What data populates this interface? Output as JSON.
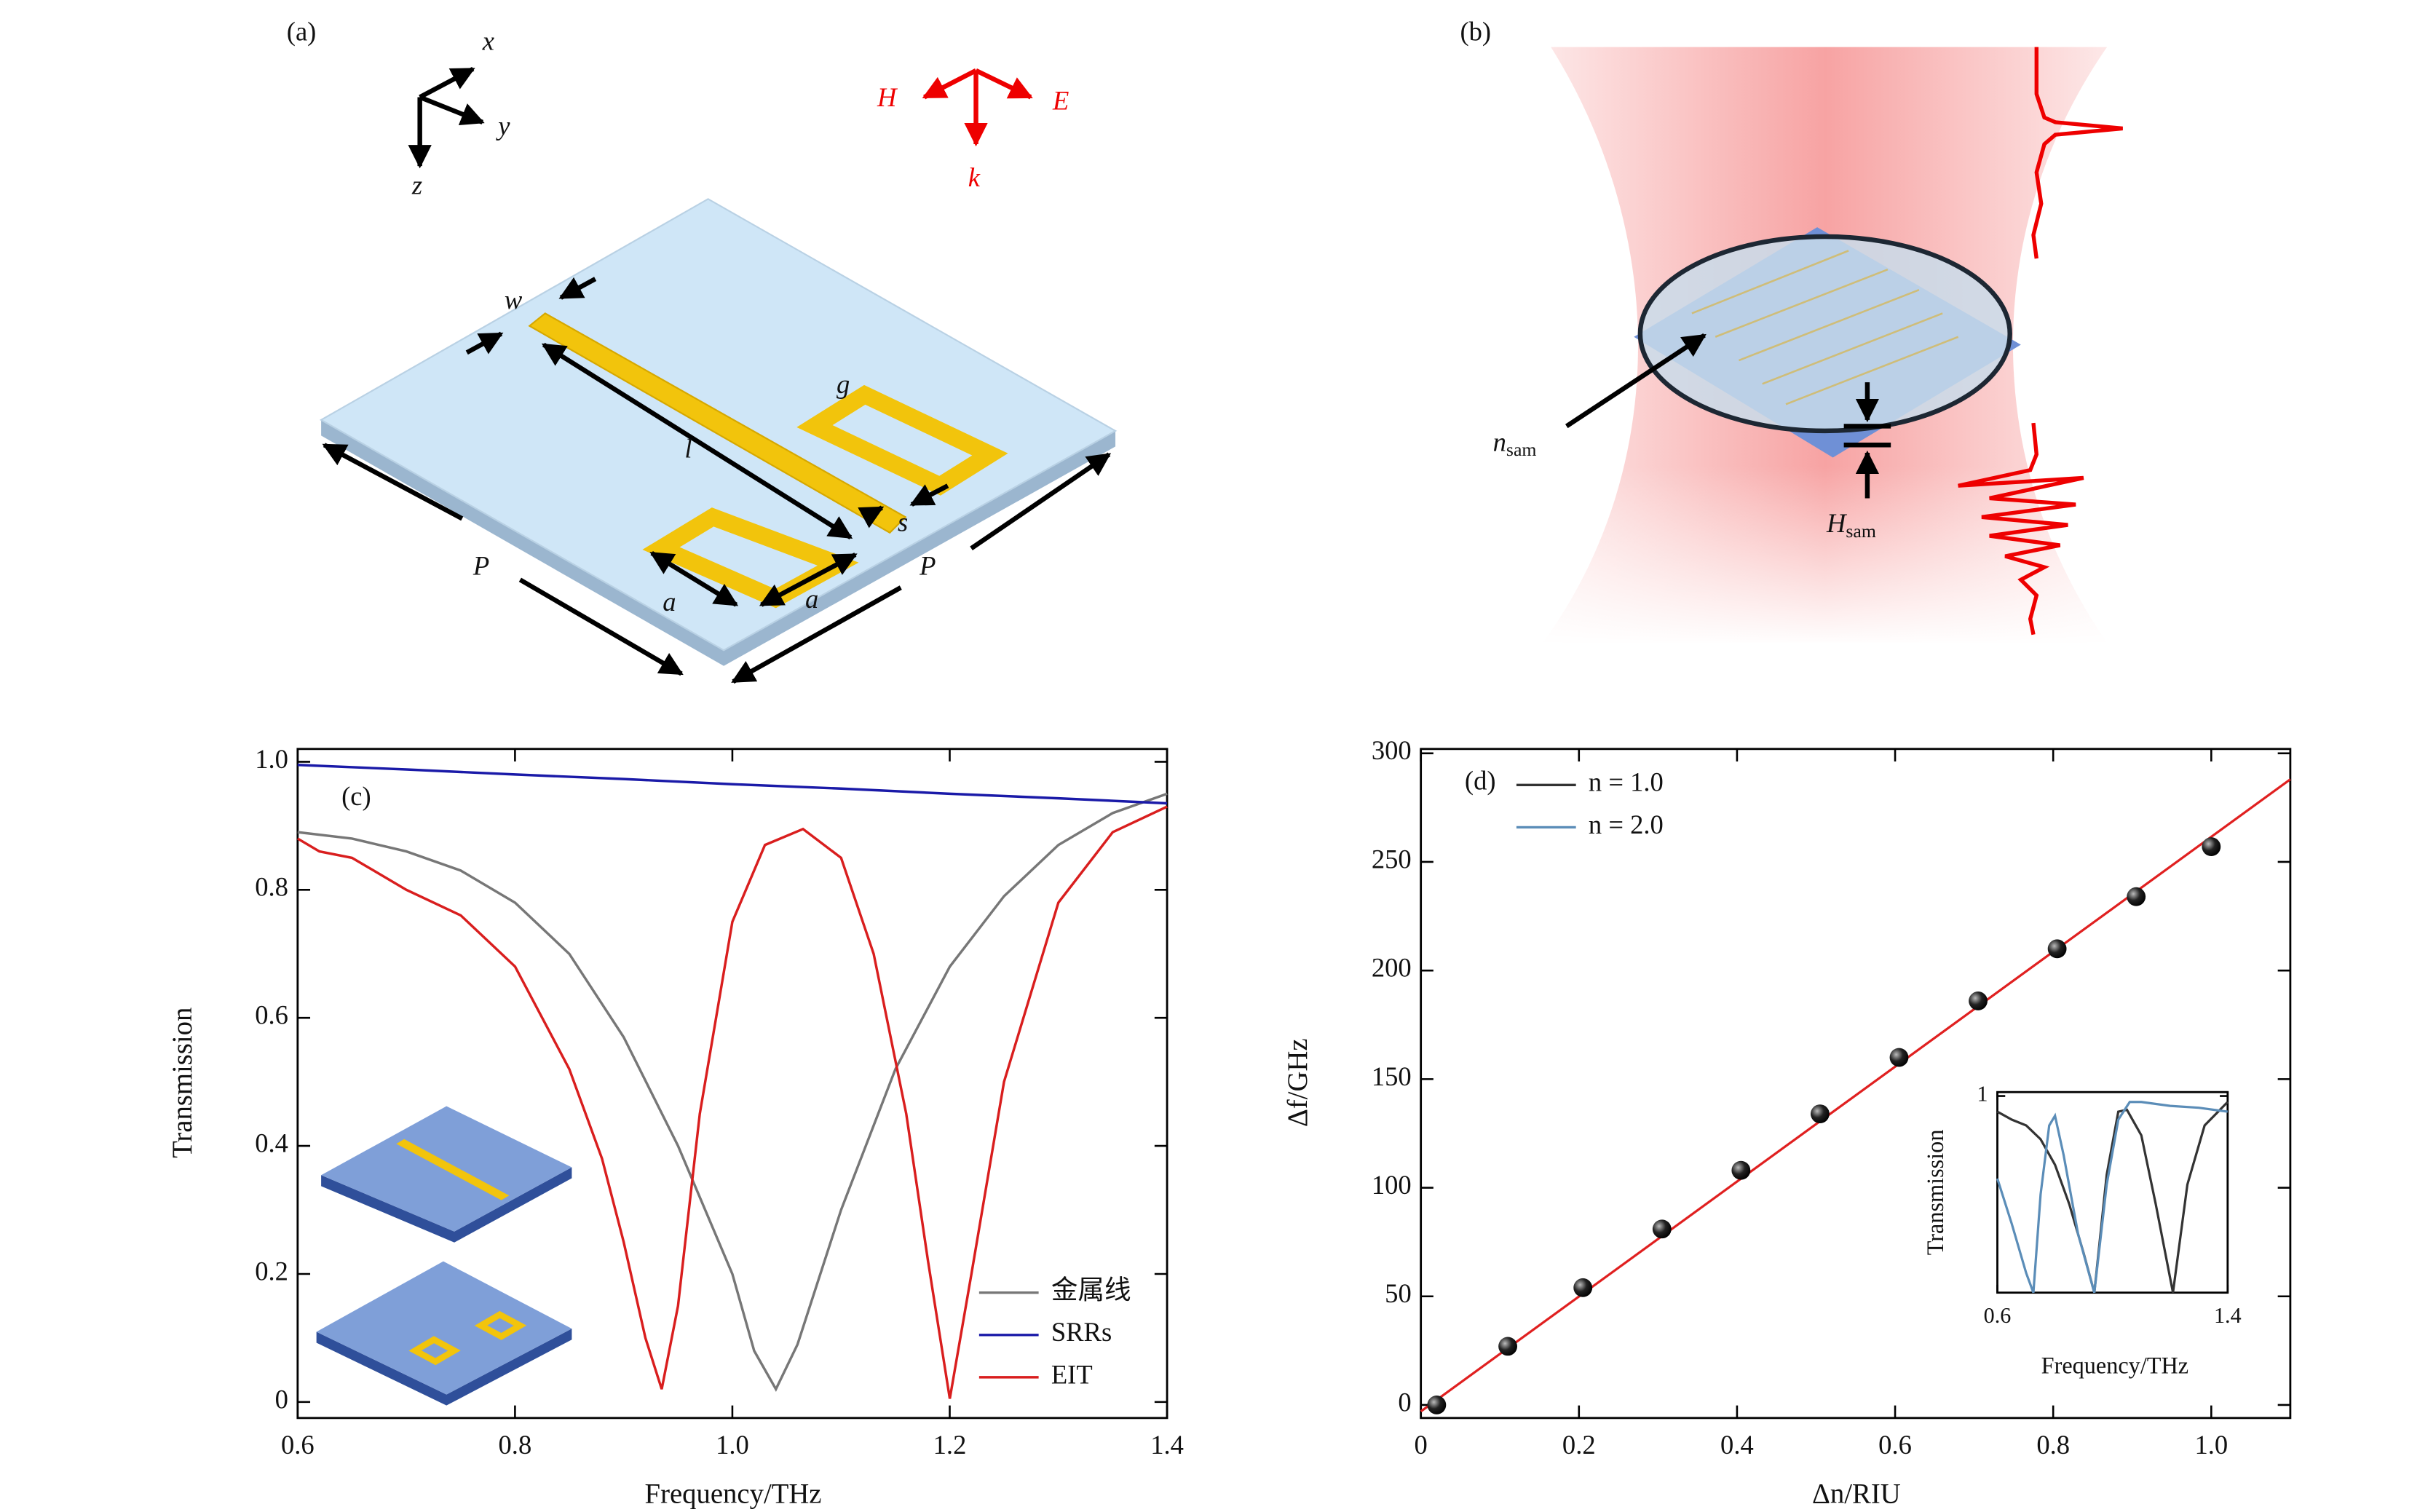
{
  "chart_data": [
    {
      "type": "line",
      "annotation": "(c)",
      "xlabel": "Frequency/THz",
      "ylabel": "Transmission",
      "xlim": [
        0.6,
        1.4
      ],
      "ylim": [
        -0.025,
        1.02
      ],
      "xticks": [
        0.6,
        0.8,
        {
          "value": 1,
          "label": "1.0"
        },
        1.2,
        1.4
      ],
      "yticks": [
        0,
        0.2,
        0.4,
        0.6,
        0.8,
        {
          "value": 1,
          "label": "1.0"
        }
      ],
      "legend": "lower right",
      "series": [
        {
          "name": "金属线",
          "color": "#777777",
          "x": [
            0.6,
            0.65,
            0.7,
            0.75,
            0.8,
            0.85,
            0.9,
            0.95,
            1.0,
            1.02,
            1.04,
            1.06,
            1.1,
            1.15,
            1.2,
            1.25,
            1.3,
            1.35,
            1.4
          ],
          "values": [
            0.89,
            0.88,
            0.86,
            0.83,
            0.78,
            0.7,
            0.57,
            0.4,
            0.2,
            0.08,
            0.02,
            0.09,
            0.3,
            0.52,
            0.68,
            0.79,
            0.87,
            0.92,
            0.95
          ]
        },
        {
          "name": "SRRs",
          "color": "#1a1aa8",
          "x": [
            0.6,
            0.7,
            0.8,
            0.9,
            1.0,
            1.1,
            1.2,
            1.3,
            1.4
          ],
          "values": [
            0.995,
            0.988,
            0.98,
            0.973,
            0.965,
            0.958,
            0.95,
            0.943,
            0.935
          ]
        },
        {
          "name": "EIT",
          "color": "#d91e1e",
          "x": [
            0.6,
            0.62,
            0.65,
            0.7,
            0.75,
            0.8,
            0.85,
            0.88,
            0.9,
            0.92,
            0.935,
            0.95,
            0.97,
            1.0,
            1.03,
            1.065,
            1.1,
            1.13,
            1.16,
            1.18,
            1.2,
            1.22,
            1.25,
            1.3,
            1.35,
            1.4
          ],
          "values": [
            0.88,
            0.86,
            0.85,
            0.8,
            0.76,
            0.68,
            0.52,
            0.38,
            0.25,
            0.1,
            0.02,
            0.15,
            0.45,
            0.75,
            0.87,
            0.895,
            0.85,
            0.7,
            0.45,
            0.22,
            0.005,
            0.2,
            0.5,
            0.78,
            0.89,
            0.93
          ]
        }
      ]
    },
    {
      "type": "scatter",
      "annotation": "(d)",
      "xlabel": "Δn/RIU",
      "ylabel": "Δf/GHz",
      "xlim": [
        0,
        1.1
      ],
      "ylim": [
        -6,
        302
      ],
      "xticks": [
        0,
        0.2,
        0.4,
        0.6,
        0.8,
        {
          "value": 1,
          "label": "1.0"
        }
      ],
      "yticks": [
        0,
        50,
        100,
        150,
        200,
        250,
        300
      ],
      "series": [
        {
          "color": "#222222",
          "x": [
            0.02,
            0.11,
            0.205,
            0.305,
            0.405,
            0.505,
            0.605,
            0.705,
            0.805,
            0.905,
            1.0
          ],
          "values": [
            0,
            27,
            54,
            81,
            108,
            134,
            160,
            186,
            210,
            234,
            257
          ]
        }
      ],
      "fit": {
        "color": "#e02020",
        "x": [
          0,
          1.1
        ],
        "values": [
          -3,
          288
        ]
      }
    },
    {
      "type": "line",
      "xlabel": "Frequency/THz",
      "ylabel": "Transmission",
      "xlim": [
        0.6,
        1.4
      ],
      "ylim": [
        0,
        1.02
      ],
      "xticks": [
        0.6,
        1.4
      ],
      "yticks": [
        1
      ],
      "legend": "upper left",
      "series": [
        {
          "name": "n = 1.0",
          "color": "#333333",
          "x": [
            0.6,
            0.65,
            0.7,
            0.75,
            0.8,
            0.85,
            0.9,
            0.937,
            0.98,
            1.02,
            1.05,
            1.1,
            1.15,
            1.21,
            1.26,
            1.32,
            1.4
          ],
          "values": [
            0.92,
            0.88,
            0.85,
            0.78,
            0.65,
            0.45,
            0.2,
            0,
            0.6,
            0.92,
            0.93,
            0.8,
            0.45,
            0,
            0.55,
            0.85,
            0.97
          ]
        },
        {
          "name": "n = 2.0",
          "color": "#5b8db8",
          "x": [
            0.6,
            0.65,
            0.7,
            0.725,
            0.75,
            0.78,
            0.8,
            0.83,
            0.88,
            0.937,
            0.98,
            1.02,
            1.06,
            1.1,
            1.2,
            1.3,
            1.4
          ],
          "values": [
            0.58,
            0.35,
            0.1,
            0,
            0.5,
            0.85,
            0.9,
            0.7,
            0.3,
            0,
            0.55,
            0.88,
            0.97,
            0.97,
            0.95,
            0.94,
            0.92
          ]
        }
      ]
    }
  ],
  "diagrams": {
    "a": {
      "panel": "(a)",
      "axes": [
        "x",
        "y",
        "z"
      ],
      "fields": [
        "H",
        "E",
        "k"
      ],
      "dims": [
        "w",
        "g",
        "l",
        "s",
        "a",
        "a",
        "P",
        "P"
      ]
    },
    "b": {
      "panel": "(b)",
      "n_sam": {
        "main": "n",
        "sub": "sam"
      },
      "H_sam": {
        "main": "H",
        "sub": "sam"
      }
    }
  }
}
